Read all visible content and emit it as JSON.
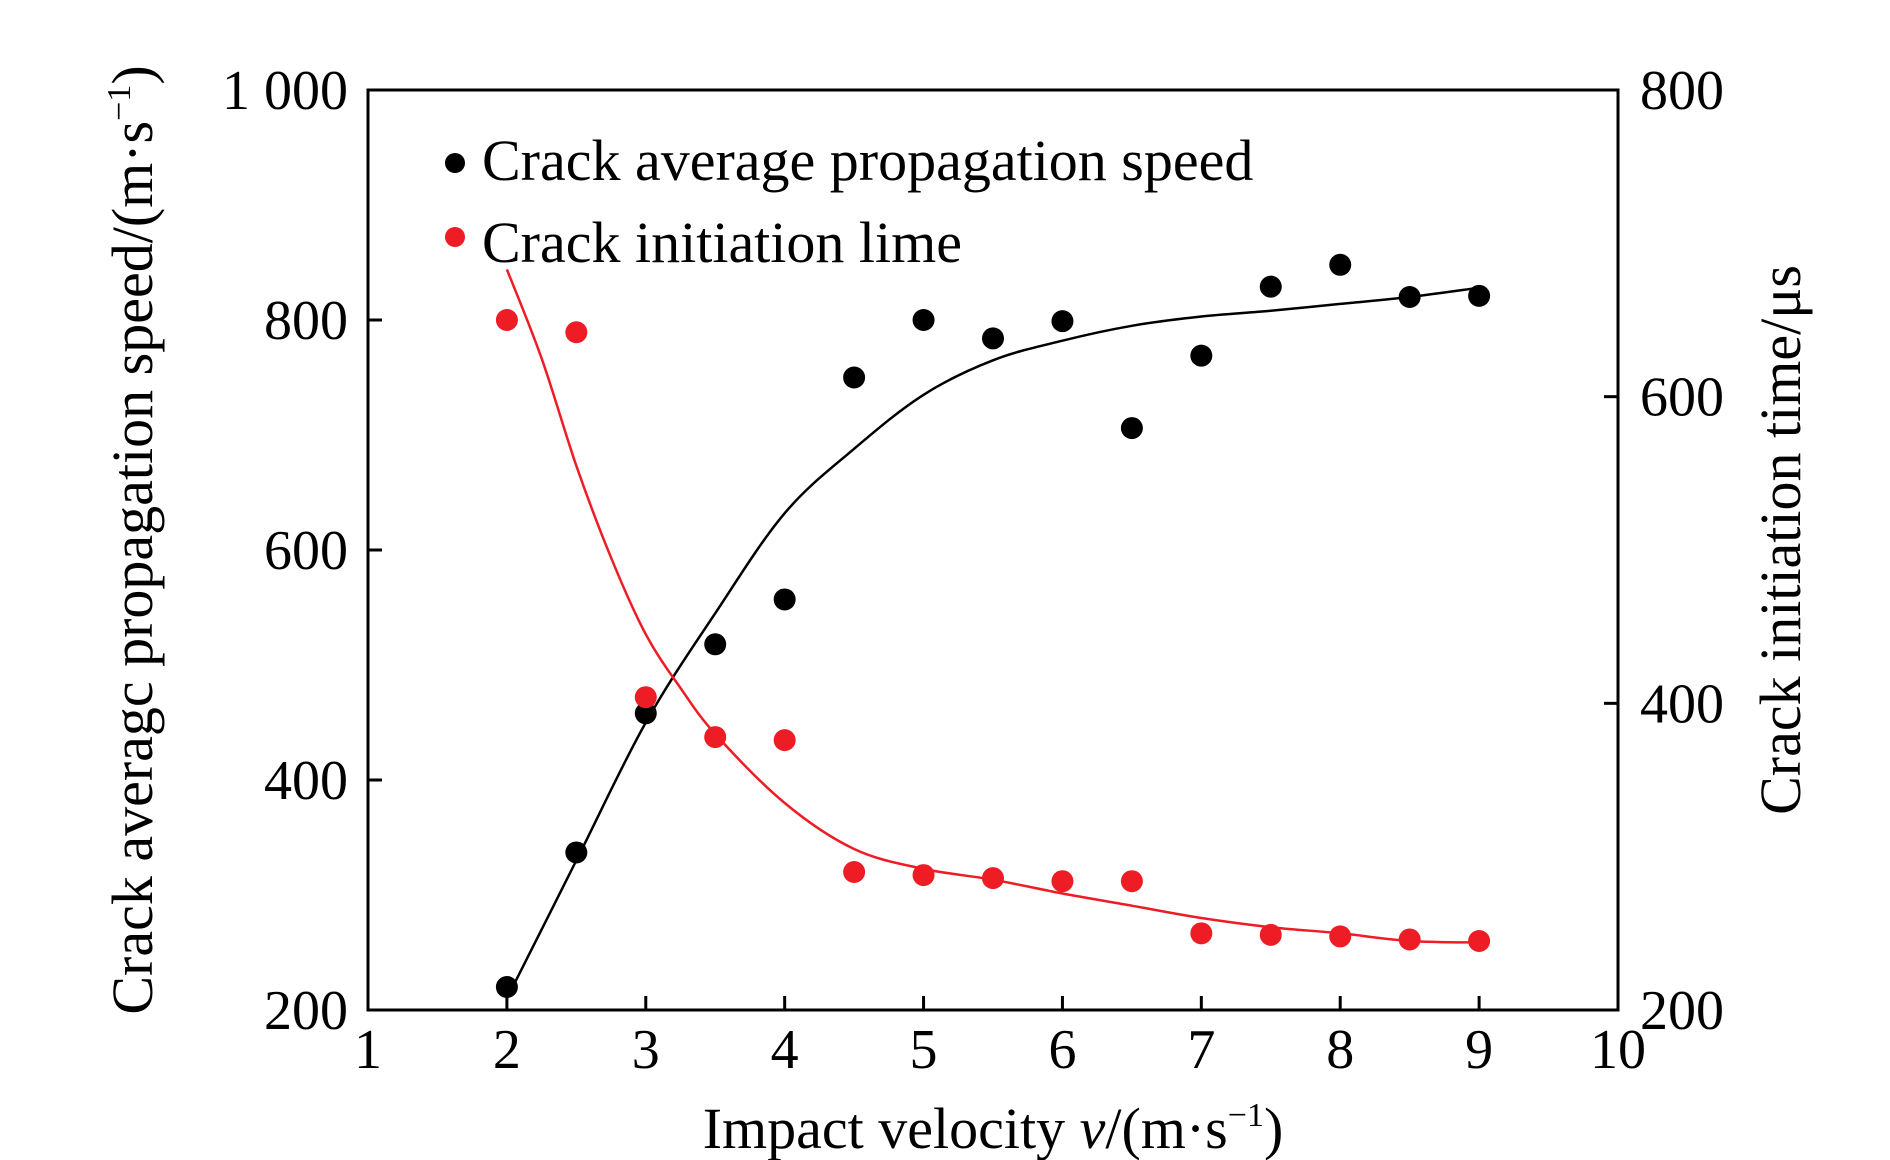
{
  "chart_data": {
    "type": "scatter",
    "xlabel_prefix": "Impact velocity ",
    "xlabel_var": "v",
    "xlabel_unit": "/(m·s",
    "xlabel_exp": "−1",
    "xlabel_close": ")",
    "ylabel_left": "Crack averagc propagation speed/(m·s",
    "ylabel_left_exp": "−1",
    "ylabel_left_close": ")",
    "ylabel_right": "Crack initiation time/μs",
    "xlim": [
      1,
      10
    ],
    "ylim_left": [
      200,
      1000
    ],
    "ylim_right": [
      200,
      800
    ],
    "x_ticks": [
      "1",
      "2",
      "3",
      "4",
      "5",
      "6",
      "7",
      "8",
      "9",
      "10"
    ],
    "y_left_ticks": [
      "200",
      "400",
      "600",
      "800",
      "1 000"
    ],
    "y_left_tick_values": [
      200,
      400,
      600,
      800,
      1000
    ],
    "y_right_ticks": [
      "200",
      "400",
      "600",
      "800"
    ],
    "y_right_tick_values": [
      200,
      400,
      600,
      800
    ],
    "legend_position": "top-left",
    "series": [
      {
        "name": "Crack average propagation speed",
        "axis": "left",
        "color": "#000000",
        "x": [
          2,
          2.5,
          3,
          3.5,
          4,
          4.5,
          5,
          5.5,
          6,
          6.5,
          7,
          7.5,
          8,
          8.5,
          9
        ],
        "y": [
          220,
          337,
          458,
          518,
          557,
          750,
          800,
          784,
          799,
          706,
          769,
          829,
          848,
          820,
          821
        ],
        "fit_x": [
          2,
          2.5,
          3,
          3.5,
          4,
          4.5,
          5,
          5.5,
          6,
          6.5,
          7,
          7.5,
          8,
          8.5,
          9
        ],
        "fit_y": [
          210,
          330,
          450,
          545,
          632,
          688,
          735,
          765,
          782,
          795,
          803,
          808,
          814,
          820,
          828
        ]
      },
      {
        "name": "Crack initiation lime",
        "axis": "right",
        "color": "#ee1c25",
        "x": [
          2,
          2.5,
          3,
          3.5,
          4,
          4.5,
          5,
          5.5,
          6,
          6.5,
          7,
          7.5,
          8,
          8.5,
          9
        ],
        "y": [
          650,
          642,
          404,
          378,
          376,
          290,
          288,
          286,
          284,
          284,
          250,
          249,
          248,
          246,
          245
        ],
        "fit_x": [
          2,
          2.25,
          2.5,
          2.75,
          3,
          3.25,
          3.5,
          4,
          4.5,
          5,
          5.5,
          6,
          6.5,
          7,
          7.5,
          8,
          8.5,
          9
        ],
        "fit_y": [
          683,
          625,
          555,
          495,
          445,
          410,
          380,
          335,
          305,
          292,
          285,
          276,
          268,
          260,
          254,
          250,
          245,
          244
        ]
      }
    ]
  }
}
